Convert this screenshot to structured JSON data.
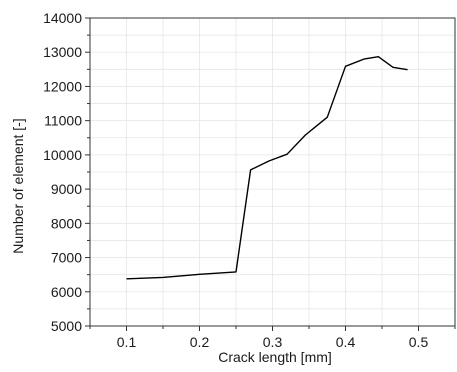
{
  "chart_data": {
    "type": "line",
    "title": "",
    "xlabel": "Crack length [mm]",
    "ylabel": "Number of element [-]",
    "xlim": [
      0.05,
      0.55
    ],
    "ylim": [
      5000,
      14000
    ],
    "grid": true,
    "legend": "none",
    "x_ticks": [
      0.1,
      0.2,
      0.3,
      0.4,
      0.5
    ],
    "x_tick_labels": [
      "0.1",
      "0.2",
      "0.3",
      "0.4",
      "0.5"
    ],
    "y_ticks": [
      5000,
      6000,
      7000,
      8000,
      9000,
      10000,
      11000,
      12000,
      13000,
      14000
    ],
    "y_tick_labels": [
      "5000",
      "6000",
      "7000",
      "8000",
      "9000",
      "10000",
      "11000",
      "12000",
      "13000",
      "14000"
    ],
    "series": [
      {
        "line_color": "#000000",
        "points": [
          {
            "x": 0.1,
            "y": 6380
          },
          {
            "x": 0.15,
            "y": 6420
          },
          {
            "x": 0.2,
            "y": 6510
          },
          {
            "x": 0.25,
            "y": 6580
          },
          {
            "x": 0.27,
            "y": 9560
          },
          {
            "x": 0.295,
            "y": 9820
          },
          {
            "x": 0.32,
            "y": 10020
          },
          {
            "x": 0.345,
            "y": 10580
          },
          {
            "x": 0.375,
            "y": 11100
          },
          {
            "x": 0.4,
            "y": 12590
          },
          {
            "x": 0.425,
            "y": 12800
          },
          {
            "x": 0.445,
            "y": 12870
          },
          {
            "x": 0.465,
            "y": 12560
          },
          {
            "x": 0.485,
            "y": 12490
          }
        ]
      }
    ]
  }
}
